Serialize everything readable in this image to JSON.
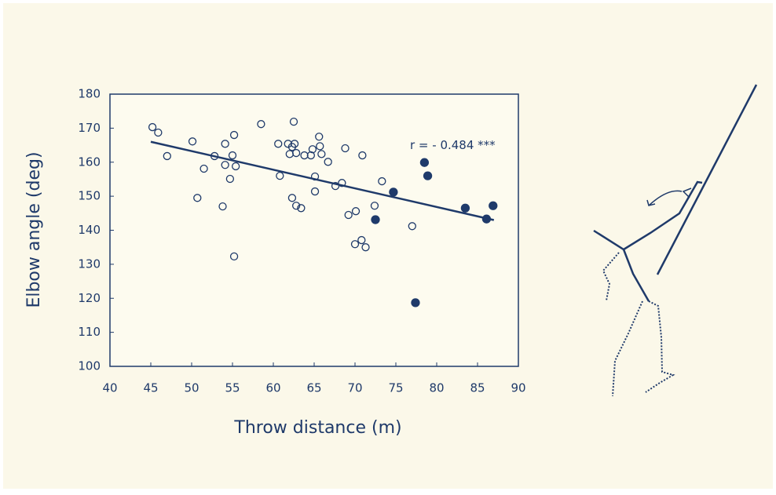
{
  "chart_data": {
    "type": "scatter",
    "x_label": "Throw distance (m)",
    "y_label": "Elbow angle (deg)",
    "annotation": "r = - 0.484 ***",
    "xlim": [
      40,
      90
    ],
    "xticks": [
      40,
      45,
      50,
      55,
      60,
      65,
      70,
      75,
      80,
      85,
      90
    ],
    "ylim": [
      100,
      180
    ],
    "yticks": [
      100,
      110,
      120,
      130,
      140,
      150,
      160,
      170,
      180
    ],
    "color": "#1f3a6a",
    "series": [
      {
        "filled": false,
        "x": [
          45.2,
          45.9,
          47.0,
          50.1,
          50.7,
          51.5,
          52.8,
          53.8,
          54.1,
          54.1,
          54.7,
          55.0,
          55.2,
          55.4,
          55.2,
          58.5,
          60.6,
          60.8,
          61.8,
          62.0,
          62.3,
          62.5,
          62.6,
          62.8,
          62.3,
          62.8,
          63.4,
          63.8,
          64.6,
          64.8,
          65.1,
          65.1,
          65.6,
          65.7,
          65.9,
          66.7,
          67.6,
          68.4,
          68.8,
          69.2,
          70.1,
          70.0,
          70.8,
          70.9,
          71.3,
          72.4,
          73.3,
          77.0
        ],
        "values": [
          170.3,
          168.7,
          161.8,
          166.1,
          149.5,
          158.1,
          161.8,
          147.0,
          165.4,
          159.2,
          155.1,
          162.0,
          168.0,
          158.8,
          132.3,
          171.2,
          165.4,
          156.0,
          165.4,
          162.4,
          164.5,
          171.9,
          165.4,
          162.7,
          149.5,
          147.2,
          146.5,
          162.0,
          162.0,
          163.8,
          155.8,
          151.4,
          167.5,
          164.7,
          162.4,
          160.1,
          153.0,
          153.9,
          164.1,
          144.5,
          145.6,
          135.9,
          137.1,
          162.0,
          135.0,
          147.2,
          154.4,
          141.2
        ]
      },
      {
        "filled": true,
        "x": [
          74.7,
          72.5,
          77.4,
          78.5,
          78.9,
          83.5,
          86.1,
          86.9
        ],
        "values": [
          151.2,
          143.1,
          118.7,
          159.9,
          156.0,
          146.5,
          143.3,
          147.2
        ]
      }
    ],
    "fit": {
      "x": [
        45,
        87
      ],
      "values": [
        166,
        143
      ]
    }
  }
}
